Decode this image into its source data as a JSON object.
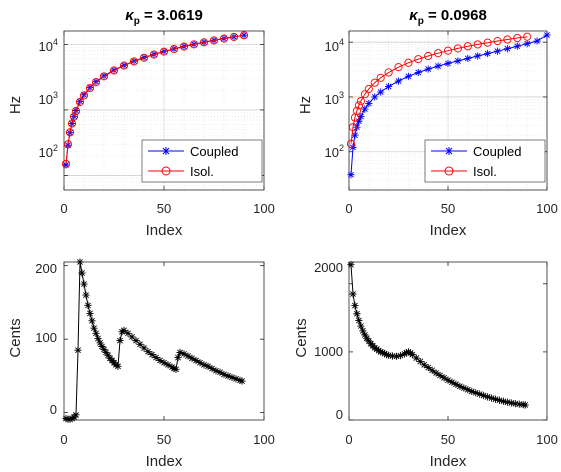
{
  "chart_data": [
    {
      "type": "line",
      "title_main": "κ",
      "title_sub": "p",
      "title_rest": " = 3.0619",
      "xlabel": "Index",
      "ylabel": "Hz",
      "xlim": [
        0,
        100
      ],
      "ylim": [
        60,
        16000
      ],
      "yscale": "log",
      "xticks": [
        0,
        50,
        100
      ],
      "ytick_base": "10",
      "ytick_exps": [
        "2",
        "3",
        "4"
      ],
      "grid": "minor",
      "legend_position": "bottom-right",
      "series": [
        {
          "name": "Coupled",
          "color": "#0000ff",
          "marker": "asterisk",
          "x": [
            1,
            2,
            3,
            4,
            5,
            6,
            8,
            10,
            13,
            16,
            20,
            25,
            30,
            35,
            40,
            45,
            50,
            55,
            60,
            65,
            70,
            75,
            80,
            85,
            90
          ],
          "y": [
            145,
            290,
            450,
            620,
            800,
            980,
            1350,
            1700,
            2200,
            2700,
            3300,
            4050,
            4800,
            5550,
            6300,
            7050,
            7800,
            8550,
            9300,
            10050,
            10800,
            11550,
            12300,
            13050,
            13800
          ]
        },
        {
          "name": "Isol.",
          "color": "#ff0000",
          "marker": "circle",
          "x": [
            1,
            2,
            3,
            4,
            5,
            6,
            8,
            10,
            13,
            16,
            20,
            25,
            30,
            35,
            40,
            45,
            50,
            55,
            60,
            65,
            70,
            75,
            80,
            85,
            90
          ],
          "y": [
            150,
            300,
            455,
            620,
            790,
            960,
            1320,
            1660,
            2150,
            2650,
            3250,
            4000,
            4750,
            5500,
            6250,
            7000,
            7750,
            8500,
            9250,
            10000,
            10750,
            11500,
            12250,
            13000,
            13750
          ]
        }
      ]
    },
    {
      "type": "line",
      "title_main": "κ",
      "title_sub": "p",
      "title_rest": " = 0.0968",
      "xlabel": "Index",
      "ylabel": "Hz",
      "xlim": [
        0,
        100
      ],
      "ylim": [
        20,
        16000
      ],
      "yscale": "log",
      "xticks": [
        0,
        50,
        100
      ],
      "ytick_base": "10",
      "ytick_exps": [
        "2",
        "3",
        "4"
      ],
      "grid": "minor",
      "legend_position": "bottom-right",
      "series": [
        {
          "name": "Coupled",
          "color": "#0000ff",
          "marker": "asterisk",
          "x": [
            1,
            2,
            3,
            4,
            5,
            6,
            8,
            10,
            13,
            16,
            20,
            25,
            30,
            35,
            40,
            45,
            50,
            55,
            60,
            65,
            70,
            75,
            80,
            85,
            90,
            95,
            100
          ],
          "y": [
            38,
            120,
            200,
            280,
            360,
            440,
            600,
            760,
            1000,
            1230,
            1550,
            1950,
            2380,
            2800,
            3230,
            3660,
            4100,
            4550,
            5050,
            5600,
            6200,
            6850,
            7600,
            8450,
            9400,
            10500,
            13500
          ]
        },
        {
          "name": "Isol.",
          "color": "#ff0000",
          "marker": "circle",
          "x": [
            1,
            2,
            3,
            4,
            5,
            6,
            8,
            10,
            13,
            16,
            20,
            25,
            30,
            35,
            40,
            45,
            50,
            55,
            60,
            65,
            70,
            75,
            80,
            85,
            90
          ],
          "y": [
            140,
            280,
            420,
            560,
            700,
            840,
            1120,
            1400,
            1820,
            2240,
            2800,
            3500,
            4200,
            4900,
            5600,
            6300,
            7000,
            7700,
            8400,
            9100,
            9800,
            10500,
            11200,
            11900,
            12600
          ]
        }
      ]
    },
    {
      "type": "line",
      "xlabel": "Index",
      "ylabel": "Cents",
      "xlim": [
        0,
        100
      ],
      "ylim": [
        -10,
        205
      ],
      "xticks": [
        0,
        50,
        100
      ],
      "yticks": [
        0,
        100,
        200
      ],
      "series": [
        {
          "color": "#000000",
          "marker": "asterisk",
          "x": [
            1,
            2,
            3,
            4,
            5,
            6,
            7,
            8,
            9,
            10,
            11,
            12,
            13,
            14,
            15,
            16,
            17,
            18,
            19,
            20,
            21,
            22,
            23,
            24,
            25,
            26,
            27,
            28,
            29,
            30,
            32,
            34,
            36,
            38,
            40,
            42,
            44,
            46,
            48,
            50,
            52,
            54,
            55,
            56,
            57,
            58,
            60,
            62,
            64,
            66,
            68,
            70,
            72,
            74,
            76,
            78,
            80,
            82,
            84,
            86,
            88,
            89
          ],
          "y": [
            -8,
            -9,
            -9,
            -8,
            -6,
            -3,
            85,
            205,
            190,
            175,
            160,
            146,
            135,
            125,
            115,
            108,
            101,
            95,
            90,
            86,
            82,
            78,
            74,
            71,
            68,
            65,
            63,
            98,
            110,
            112,
            108,
            103,
            98,
            93,
            88,
            83,
            79,
            75,
            71,
            68,
            65,
            62,
            60,
            59,
            75,
            82,
            80,
            77,
            74,
            71,
            68,
            65,
            63,
            60,
            57,
            55,
            52,
            50,
            48,
            46,
            44,
            43
          ]
        }
      ]
    },
    {
      "type": "line",
      "xlabel": "Index",
      "ylabel": "Cents",
      "xlim": [
        0,
        100
      ],
      "ylim": [
        0,
        2320
      ],
      "xticks": [
        0,
        50,
        100
      ],
      "yticks": [
        0,
        1000,
        2000
      ],
      "series": [
        {
          "color": "#000000",
          "marker": "asterisk",
          "x": [
            1,
            2,
            3,
            4,
            5,
            6,
            7,
            8,
            9,
            10,
            11,
            12,
            13,
            14,
            15,
            16,
            17,
            18,
            19,
            20,
            22,
            24,
            26,
            28,
            29,
            30,
            31,
            32,
            34,
            36,
            38,
            40,
            42,
            44,
            46,
            48,
            50,
            52,
            54,
            56,
            58,
            60,
            62,
            64,
            66,
            68,
            70,
            72,
            74,
            76,
            78,
            80,
            82,
            84,
            86,
            88,
            89
          ],
          "y": [
            2280,
            1850,
            1680,
            1560,
            1460,
            1380,
            1310,
            1250,
            1200,
            1160,
            1120,
            1090,
            1060,
            1040,
            1020,
            1000,
            990,
            975,
            960,
            950,
            940,
            935,
            945,
            970,
            990,
            1000,
            985,
            960,
            910,
            860,
            810,
            770,
            730,
            690,
            655,
            620,
            585,
            555,
            525,
            495,
            470,
            445,
            420,
            400,
            380,
            360,
            340,
            322,
            305,
            290,
            275,
            262,
            250,
            240,
            232,
            225,
            220
          ]
        }
      ]
    }
  ]
}
